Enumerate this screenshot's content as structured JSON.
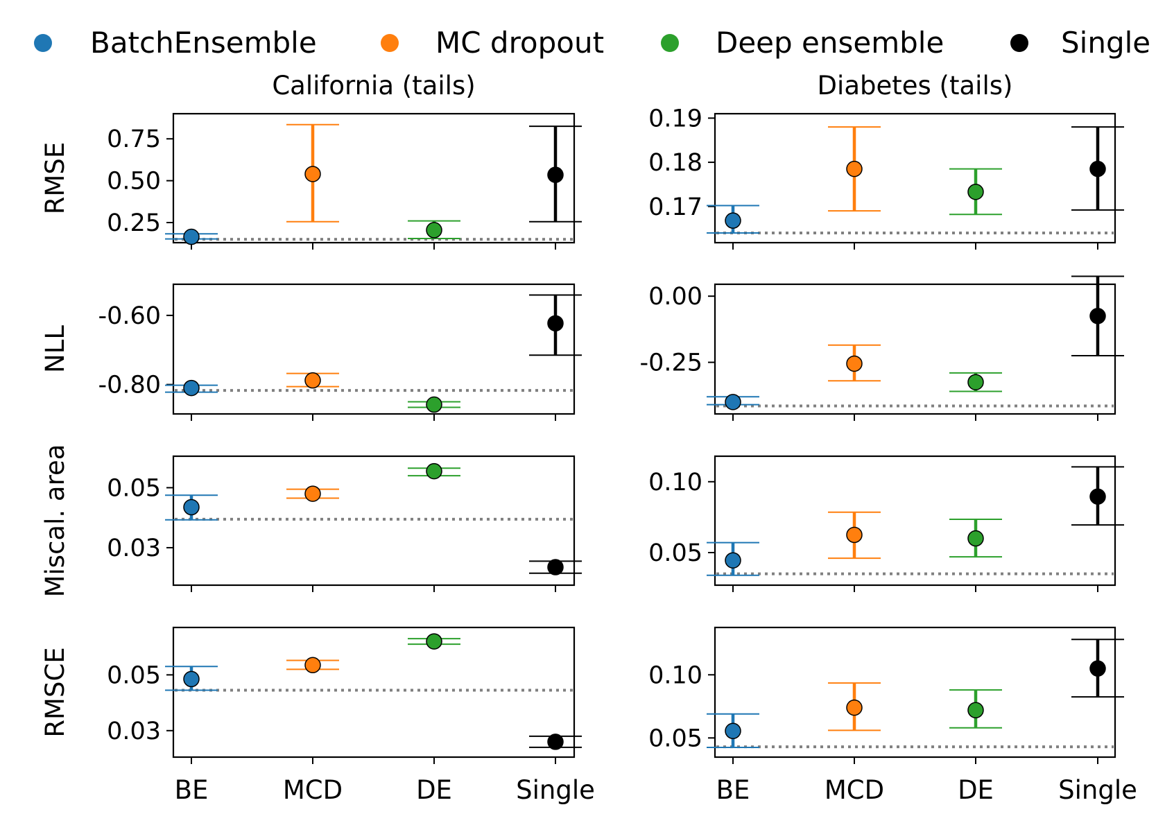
{
  "legend": [
    {
      "name": "BatchEnsemble",
      "color": "#1f77b4"
    },
    {
      "name": "MC dropout",
      "color": "#ff7f0e"
    },
    {
      "name": "Deep ensemble",
      "color": "#2ca02c"
    },
    {
      "name": "Single",
      "color": "#000000"
    }
  ],
  "chart_data": [
    {
      "type": "errorbar",
      "title": "California (tails)",
      "ylabel": "RMSE",
      "ylim": [
        0.13,
        0.9
      ],
      "yticks": [
        0.25,
        0.5,
        0.75
      ],
      "tick_labels": [
        "0.25",
        "0.50",
        "0.75"
      ],
      "baseline": 0.15,
      "categories": [
        "BE",
        "MCD",
        "DE",
        "Single"
      ],
      "points": [
        {
          "value": 0.165,
          "low": 0.152,
          "high": 0.183
        },
        {
          "value": 0.54,
          "low": 0.255,
          "high": 0.835
        },
        {
          "value": 0.205,
          "low": 0.155,
          "high": 0.26
        },
        {
          "value": 0.535,
          "low": 0.255,
          "high": 0.825
        }
      ]
    },
    {
      "type": "errorbar",
      "title": "Diabetes (tails)",
      "ylabel": "",
      "ylim": [
        0.1618,
        0.191
      ],
      "yticks": [
        0.17,
        0.18,
        0.19
      ],
      "tick_labels": [
        "0.17",
        "0.18",
        "0.19"
      ],
      "baseline": 0.164,
      "categories": [
        "BE",
        "MCD",
        "DE",
        "Single"
      ],
      "points": [
        {
          "value": 0.1668,
          "low": 0.164,
          "high": 0.1702
        },
        {
          "value": 0.1785,
          "low": 0.169,
          "high": 0.188
        },
        {
          "value": 0.1733,
          "low": 0.1682,
          "high": 0.1785
        },
        {
          "value": 0.1785,
          "low": 0.1692,
          "high": 0.188
        }
      ]
    },
    {
      "type": "errorbar",
      "title": "",
      "ylabel": "NLL",
      "ylim": [
        -0.885,
        -0.51
      ],
      "yticks": [
        -0.8,
        -0.6
      ],
      "tick_labels": [
        "-0.80",
        "-0.60"
      ],
      "baseline": -0.817,
      "categories": [
        "BE",
        "MCD",
        "DE",
        "Single"
      ],
      "points": [
        {
          "value": -0.81,
          "low": -0.822,
          "high": -0.802
        },
        {
          "value": -0.788,
          "low": -0.806,
          "high": -0.768
        },
        {
          "value": -0.858,
          "low": -0.866,
          "high": -0.85
        },
        {
          "value": -0.623,
          "low": -0.715,
          "high": -0.541
        }
      ]
    },
    {
      "type": "errorbar",
      "title": "",
      "ylabel": "",
      "ylim": [
        -0.445,
        0.045
      ],
      "yticks": [
        -0.25,
        0.0
      ],
      "tick_labels": [
        "-0.25",
        "0.00"
      ],
      "baseline": -0.415,
      "categories": [
        "BE",
        "MCD",
        "DE",
        "Single"
      ],
      "points": [
        {
          "value": -0.4,
          "low": -0.41,
          "high": -0.38
        },
        {
          "value": -0.255,
          "low": -0.32,
          "high": -0.185
        },
        {
          "value": -0.325,
          "low": -0.36,
          "high": -0.29
        },
        {
          "value": -0.075,
          "low": -0.225,
          "high": 0.075
        }
      ]
    },
    {
      "type": "errorbar",
      "title": "",
      "ylabel": "Miscal. area",
      "ylim": [
        0.0175,
        0.0605
      ],
      "yticks": [
        0.03,
        0.05
      ],
      "tick_labels": [
        "0.03",
        "0.05"
      ],
      "baseline": 0.0395,
      "categories": [
        "BE",
        "MCD",
        "DE",
        "Single"
      ],
      "points": [
        {
          "value": 0.0435,
          "low": 0.0393,
          "high": 0.0475
        },
        {
          "value": 0.048,
          "low": 0.0465,
          "high": 0.0495
        },
        {
          "value": 0.0555,
          "low": 0.054,
          "high": 0.0565
        },
        {
          "value": 0.0235,
          "low": 0.0215,
          "high": 0.0255
        }
      ]
    },
    {
      "type": "errorbar",
      "title": "",
      "ylabel": "",
      "ylim": [
        0.027,
        0.118
      ],
      "yticks": [
        0.05,
        0.1
      ],
      "tick_labels": [
        "0.05",
        "0.10"
      ],
      "baseline": 0.035,
      "categories": [
        "BE",
        "MCD",
        "DE",
        "Single"
      ],
      "points": [
        {
          "value": 0.0445,
          "low": 0.034,
          "high": 0.057
        },
        {
          "value": 0.0625,
          "low": 0.046,
          "high": 0.0785
        },
        {
          "value": 0.06,
          "low": 0.047,
          "high": 0.0735
        },
        {
          "value": 0.0895,
          "low": 0.0695,
          "high": 0.1105
        }
      ]
    },
    {
      "type": "errorbar",
      "title": "",
      "ylabel": "RMSCE",
      "ylim": [
        0.0205,
        0.067
      ],
      "yticks": [
        0.03,
        0.05
      ],
      "tick_labels": [
        "0.03",
        "0.05"
      ],
      "baseline": 0.0445,
      "categories": [
        "BE",
        "MCD",
        "DE",
        "Single"
      ],
      "points": [
        {
          "value": 0.0485,
          "low": 0.0445,
          "high": 0.053
        },
        {
          "value": 0.0535,
          "low": 0.052,
          "high": 0.0552
        },
        {
          "value": 0.062,
          "low": 0.061,
          "high": 0.063
        },
        {
          "value": 0.026,
          "low": 0.024,
          "high": 0.028
        }
      ]
    },
    {
      "type": "errorbar",
      "title": "",
      "ylabel": "",
      "ylim": [
        0.0348,
        0.1375
      ],
      "yticks": [
        0.05,
        0.1
      ],
      "tick_labels": [
        "0.05",
        "0.10"
      ],
      "baseline": 0.043,
      "categories": [
        "BE",
        "MCD",
        "DE",
        "Single"
      ],
      "points": [
        {
          "value": 0.0555,
          "low": 0.0425,
          "high": 0.069
        },
        {
          "value": 0.074,
          "low": 0.056,
          "high": 0.0935
        },
        {
          "value": 0.072,
          "low": 0.058,
          "high": 0.088
        },
        {
          "value": 0.105,
          "low": 0.0825,
          "high": 0.128
        }
      ]
    }
  ]
}
